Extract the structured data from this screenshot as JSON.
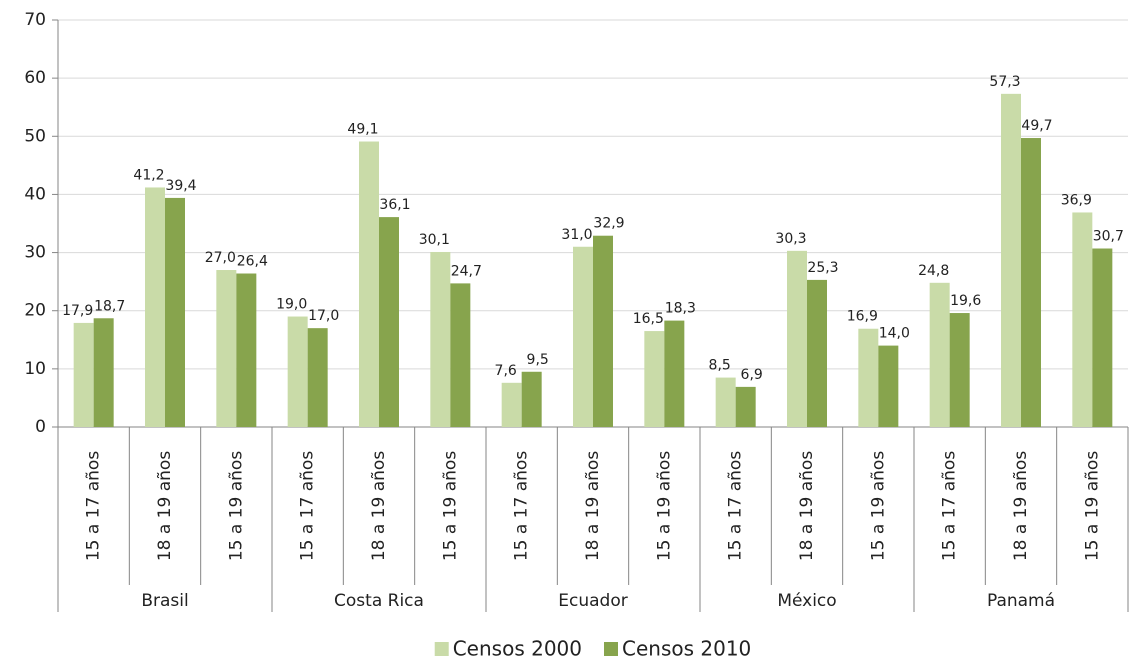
{
  "chart_data": {
    "type": "bar",
    "groups": [
      {
        "label": "Brasil",
        "categories": [
          "15 a 17 años",
          "18 a 19  años",
          "15 a 19  años"
        ]
      },
      {
        "label": "Costa Rica",
        "categories": [
          "15 a 17 años",
          "18 a 19  años",
          "15 a 19  años"
        ]
      },
      {
        "label": "Ecuador",
        "categories": [
          "15 a 17 años",
          "18 a 19  años",
          "15 a 19  años"
        ]
      },
      {
        "label": "México",
        "categories": [
          "15 a 17 años",
          "18 a 19  años",
          "15 a 19  años"
        ]
      },
      {
        "label": "Panamá",
        "categories": [
          "15 a 17 años",
          "18 a 19  años",
          "15 a 19  años"
        ]
      }
    ],
    "series": [
      {
        "name": "Censos 2000",
        "color": "#c9dba8",
        "values": [
          17.9,
          41.2,
          27.0,
          19.0,
          49.1,
          30.1,
          7.6,
          31.0,
          16.5,
          8.5,
          30.3,
          16.9,
          24.8,
          57.3,
          36.9
        ],
        "value_labels": [
          "17,9",
          "41,2",
          "27,0",
          "19,0",
          "49,1",
          "30,1",
          "7,6",
          "31,0",
          "16,5",
          "8,5",
          "30,3",
          "16,9",
          "24,8",
          "57,3",
          "36,9"
        ]
      },
      {
        "name": "Censos 2010",
        "color": "#87a44d",
        "values": [
          18.7,
          39.4,
          26.4,
          17.0,
          36.1,
          24.7,
          9.5,
          32.9,
          18.3,
          6.9,
          25.3,
          14.0,
          19.6,
          49.7,
          30.7
        ],
        "value_labels": [
          "18,7",
          "39,4",
          "26,4",
          "17,0",
          "36,1",
          "24,7",
          "9,5",
          "32,9",
          "18,3",
          "6,9",
          "25,3",
          "14,0",
          "19,6",
          "49,7",
          "30,7"
        ]
      }
    ],
    "ylim": [
      0,
      70
    ],
    "yticks": [
      0,
      10,
      20,
      30,
      40,
      50,
      60,
      70
    ],
    "grid": true,
    "legend": "bottom"
  }
}
